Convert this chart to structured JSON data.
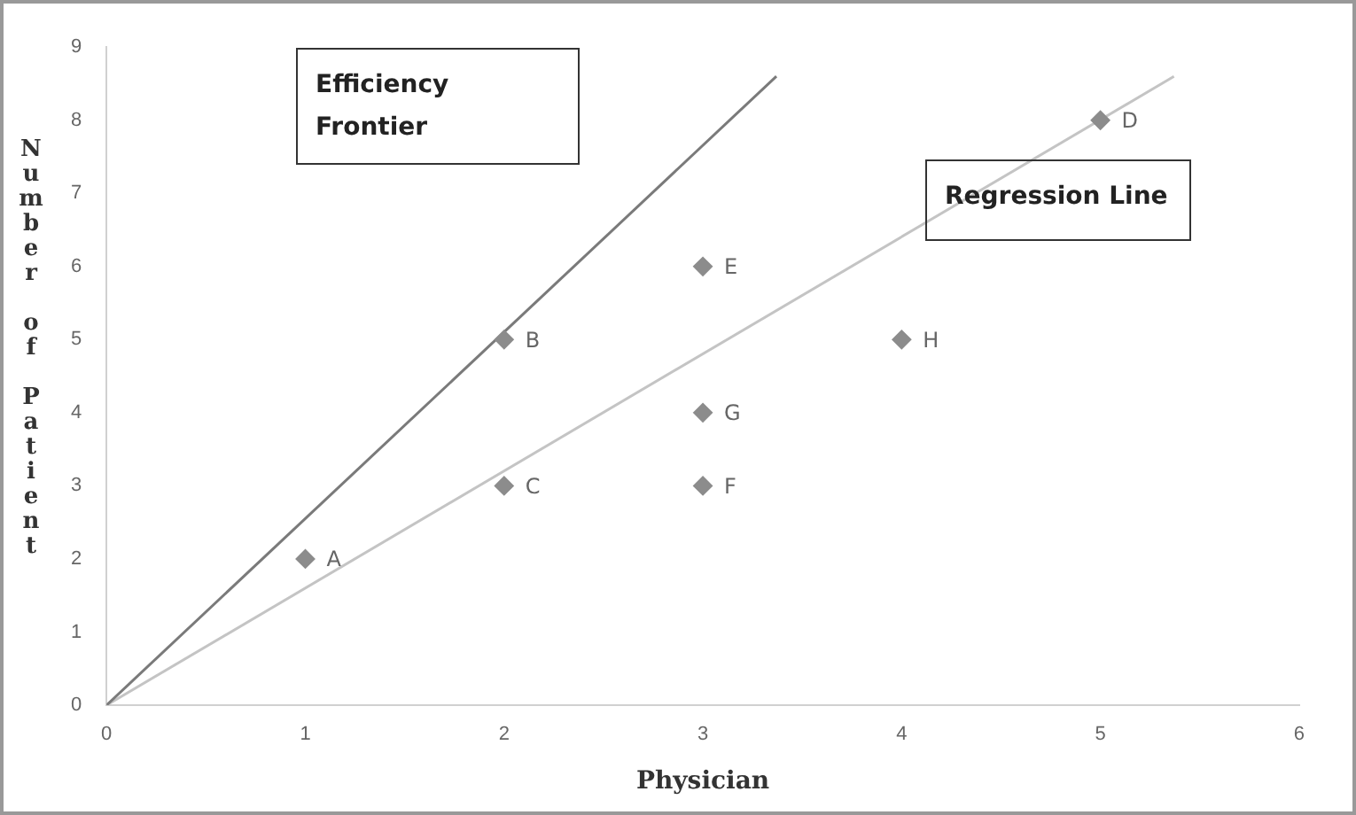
{
  "chart_data": {
    "type": "scatter",
    "xlabel": "Physician",
    "ylabel": "Number of Patient",
    "xlim": [
      0,
      6
    ],
    "xticks": [
      0,
      1,
      2,
      3,
      4,
      5,
      6
    ],
    "ylim": [
      0,
      9
    ],
    "yticks": [
      0,
      1,
      2,
      3,
      4,
      5,
      6,
      7,
      8,
      9
    ],
    "grid": false,
    "legend": false,
    "marker": "diamond",
    "series": [
      {
        "type": "scatter",
        "color": "#8c8c8c",
        "x": [
          1,
          2,
          2,
          5,
          3,
          3,
          3,
          4
        ],
        "values": [
          2,
          5,
          3,
          8,
          6,
          3,
          4,
          5
        ]
      },
      {
        "type": "line",
        "color": "#7a7a7a",
        "marker": "none",
        "x": [
          0,
          3.37
        ],
        "values": [
          0,
          8.6
        ]
      },
      {
        "type": "line",
        "color": "#c4c4c4",
        "marker": "none",
        "x": [
          0,
          5.37
        ],
        "values": [
          0,
          8.6
        ]
      }
    ],
    "annotations": [
      "Efficiency Frontier",
      "Regression Line",
      {
        "text": "A",
        "x": 1,
        "y": 2
      },
      {
        "text": "B",
        "x": 2,
        "y": 5
      },
      {
        "text": "C",
        "x": 2,
        "y": 3
      },
      {
        "text": "D",
        "x": 5,
        "y": 8
      },
      {
        "text": "E",
        "x": 3,
        "y": 6
      },
      {
        "text": "F",
        "x": 3,
        "y": 3
      },
      {
        "text": "G",
        "x": 3,
        "y": 4
      },
      {
        "text": "H",
        "x": 4,
        "y": 5
      }
    ]
  }
}
